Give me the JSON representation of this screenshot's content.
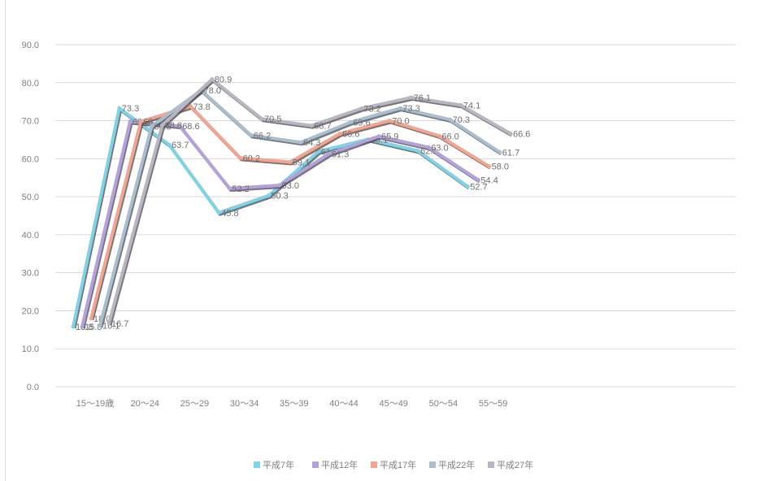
{
  "chart_data": {
    "type": "line",
    "title": "",
    "xlabel": "",
    "ylabel": "",
    "ylim": [
      0,
      90
    ],
    "yticks": [
      "0.0",
      "10.0",
      "20.0",
      "30.0",
      "40.0",
      "50.0",
      "60.0",
      "70.0",
      "80.0",
      "90.0"
    ],
    "categories": [
      "15～19歳",
      "20～24",
      "25～29",
      "30～34",
      "35～39",
      "40～44",
      "45～49",
      "50～54",
      "55～59"
    ],
    "grid": true,
    "legend_position": "bottom",
    "series": [
      {
        "name": "平成7年",
        "color": "#7fd3e6",
        "values": [
          15.8,
          73.3,
          63.7,
          45.8,
          50.3,
          61.9,
          65.1,
          62.1,
          52.7
        ],
        "labels": [
          "15.8",
          "73.3",
          "63.7",
          "45.8",
          "50.3",
          "61.9",
          "65.1",
          "62.1",
          "52.7"
        ]
      },
      {
        "name": "平成12年",
        "color": "#b3a2dc",
        "values": [
          15.8,
          69.8,
          68.6,
          52.2,
          53.0,
          61.3,
          65.9,
          63.0,
          54.4
        ],
        "labels": [
          "15.8",
          "69.8",
          "68.6",
          "52.2",
          "53.0",
          "61.3",
          "65.9",
          "63.0",
          "54.4"
        ]
      },
      {
        "name": "平成17年",
        "color": "#f2a68f",
        "values": [
          18.0,
          69.8,
          73.8,
          60.2,
          59.1,
          66.6,
          70.0,
          66.0,
          58.0
        ],
        "labels": [
          "18.0",
          "69.8",
          "73.8",
          "60.2",
          "59.1",
          "66.6",
          "70.0",
          "66.0",
          "58.0"
        ]
      },
      {
        "name": "平成22年",
        "color": "#a9bfd0",
        "values": [
          16.1,
          68.5,
          78.0,
          66.2,
          64.3,
          69.6,
          73.3,
          70.3,
          61.7
        ],
        "labels": [
          "16.1",
          "68.5",
          "78.0",
          "66.2",
          "64.3",
          "69.6",
          "73.3",
          "70.3",
          "61.7"
        ]
      },
      {
        "name": "平成27年",
        "color": "#b9b6c2",
        "values": [
          16.7,
          68.8,
          80.9,
          70.5,
          68.7,
          73.2,
          76.1,
          74.1,
          66.6
        ],
        "labels": [
          "16.7",
          "68.8",
          "80.9",
          "70.5",
          "68.7",
          "73.2",
          "76.1",
          "74.1",
          "66.6"
        ]
      }
    ]
  }
}
